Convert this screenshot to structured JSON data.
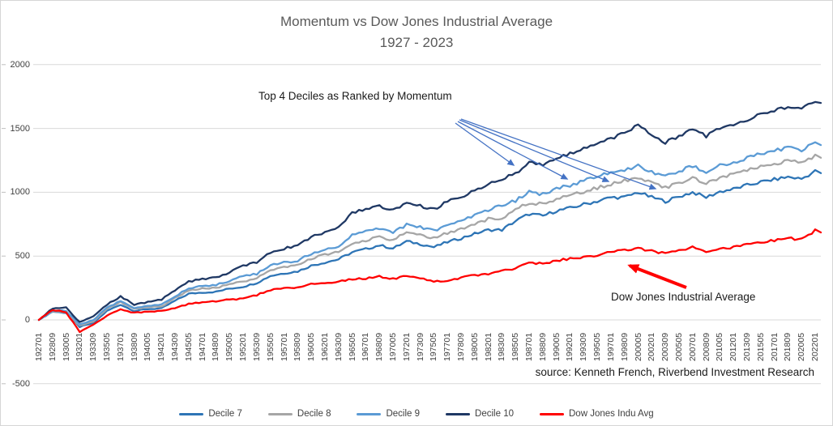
{
  "title_line1": "Momentum vs Dow Jones Industrial Average",
  "title_line2": "1927 - 2023",
  "annotations": {
    "top_deciles": "Top 4 Deciles as Ranked by Momentum",
    "dow_jones": "Dow Jones Industrial Average",
    "source": "source: Kenneth French, Riverbend Investment Research"
  },
  "colors": {
    "title_text": "#595959",
    "axis_text": "#404040",
    "gridline": "#d9d9d9",
    "annotation_text": "#1a1a1a",
    "blue_arrow": "#4472c4",
    "red_arrow": "#ff0000"
  },
  "chart_data": {
    "type": "line",
    "title": "Momentum vs Dow Jones Industrial Average 1927 - 2023",
    "xlabel": "",
    "ylabel": "",
    "ylim": [
      -500,
      2000
    ],
    "y_ticks": [
      2000,
      1500,
      1000,
      500,
      0,
      -500
    ],
    "grid": "horizontal",
    "legend_position": "bottom",
    "categories": [
      "192701",
      "192809",
      "193005",
      "193201",
      "193309",
      "193505",
      "193701",
      "193809",
      "194005",
      "194201",
      "194309",
      "194505",
      "194701",
      "194809",
      "195005",
      "195201",
      "195309",
      "195505",
      "195701",
      "195809",
      "196005",
      "196201",
      "196309",
      "196505",
      "196701",
      "196809",
      "197005",
      "197201",
      "197309",
      "197505",
      "197701",
      "197809",
      "198005",
      "198201",
      "198309",
      "198505",
      "198701",
      "198809",
      "199005",
      "199201",
      "199309",
      "199505",
      "199701",
      "199809",
      "200005",
      "200201",
      "200309",
      "200505",
      "200701",
      "200809",
      "201005",
      "201201",
      "201309",
      "201505",
      "201701",
      "201809",
      "202005",
      "202201"
    ],
    "series": [
      {
        "name": "Decile 7",
        "color": "#2e75b6",
        "values": [
          0,
          65,
          55,
          -55,
          -25,
          70,
          120,
          70,
          85,
          90,
          150,
          205,
          215,
          220,
          245,
          260,
          290,
          345,
          365,
          380,
          425,
          450,
          475,
          530,
          555,
          585,
          560,
          615,
          595,
          570,
          610,
          640,
          675,
          705,
          705,
          775,
          830,
          815,
          855,
          875,
          905,
          930,
          960,
          960,
          1000,
          960,
          930,
          965,
          1000,
          960,
          1005,
          1025,
          1055,
          1080,
          1100,
          1120,
          1105,
          1165
        ]
      },
      {
        "name": "Decile 8",
        "color": "#a6a6a6",
        "values": [
          0,
          70,
          60,
          -45,
          -10,
          85,
          140,
          85,
          100,
          105,
          170,
          230,
          245,
          250,
          280,
          300,
          330,
          390,
          415,
          430,
          480,
          510,
          535,
          595,
          620,
          650,
          625,
          685,
          665,
          640,
          680,
          715,
          755,
          790,
          800,
          860,
          920,
          905,
          950,
          975,
          1005,
          1035,
          1065,
          1090,
          1115,
          1070,
          1035,
          1075,
          1110,
          1070,
          1115,
          1140,
          1170,
          1200,
          1225,
          1245,
          1230,
          1285
        ]
      },
      {
        "name": "Decile 9",
        "color": "#5b9bd5",
        "values": [
          0,
          75,
          70,
          -35,
          0,
          95,
          150,
          95,
          110,
          120,
          185,
          250,
          265,
          275,
          305,
          345,
          360,
          425,
          450,
          465,
          520,
          550,
          580,
          665,
          690,
          715,
          685,
          745,
          725,
          700,
          745,
          775,
          820,
          860,
          895,
          935,
          1000,
          985,
          1030,
          1055,
          1090,
          1120,
          1155,
          1170,
          1210,
          1160,
          1120,
          1165,
          1205,
          1160,
          1210,
          1235,
          1270,
          1300,
          1325,
          1350,
          1330,
          1385
        ]
      },
      {
        "name": "Decile 10",
        "color": "#1f3864",
        "values": [
          0,
          90,
          95,
          -20,
          30,
          120,
          185,
          120,
          140,
          160,
          230,
          300,
          320,
          330,
          370,
          425,
          450,
          530,
          560,
          580,
          650,
          690,
          720,
          840,
          870,
          895,
          855,
          920,
          890,
          865,
          925,
          960,
          1010,
          1060,
          1100,
          1150,
          1230,
          1210,
          1270,
          1300,
          1340,
          1380,
          1420,
          1470,
          1520,
          1450,
          1390,
          1440,
          1490,
          1440,
          1500,
          1530,
          1570,
          1610,
          1640,
          1670,
          1650,
          1715
        ]
      },
      {
        "name": "Dow Jones Indu Avg",
        "color": "#ff0000",
        "values": [
          0,
          80,
          60,
          -95,
          -40,
          35,
          85,
          55,
          65,
          70,
          95,
          125,
          140,
          145,
          160,
          165,
          195,
          235,
          250,
          255,
          280,
          290,
          300,
          320,
          325,
          340,
          320,
          345,
          330,
          300,
          310,
          330,
          350,
          360,
          385,
          405,
          450,
          440,
          465,
          480,
          490,
          505,
          530,
          545,
          560,
          540,
          520,
          545,
          570,
          525,
          555,
          570,
          590,
          610,
          625,
          640,
          630,
          700
        ]
      }
    ]
  }
}
